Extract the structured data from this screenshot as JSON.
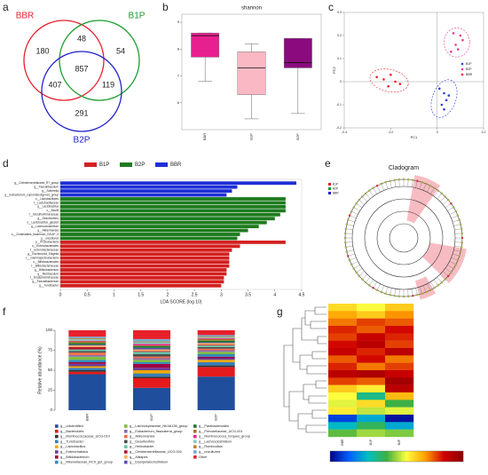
{
  "chart_data": [
    {
      "panel": "a",
      "type": "venn",
      "sets": [
        {
          "name": "BBR",
          "color": "#e8202a"
        },
        {
          "name": "B1P",
          "color": "#1a9c2e"
        },
        {
          "name": "B2P",
          "color": "#2020cc"
        }
      ],
      "regions": [
        {
          "sets": [
            0
          ],
          "value": 180
        },
        {
          "sets": [
            0,
            1
          ],
          "value": 48
        },
        {
          "sets": [
            1
          ],
          "value": 54
        },
        {
          "sets": [
            0,
            1,
            2
          ],
          "value": 857
        },
        {
          "sets": [
            0,
            2
          ],
          "value": 407
        },
        {
          "sets": [
            1,
            2
          ],
          "value": 119
        },
        {
          "sets": [
            2
          ],
          "value": 291
        }
      ]
    },
    {
      "panel": "b",
      "type": "box",
      "title": "shannon",
      "categories": [
        "BBR",
        "B1P",
        "B2P"
      ],
      "colors": [
        "#e8208f",
        "#f9b8c4",
        "#8b0b7f"
      ],
      "boxes": [
        {
          "min": 6.8,
          "q1": 7.7,
          "median": 8.5,
          "q3": 8.6,
          "max": 8.6
        },
        {
          "min": 5.4,
          "q1": 6.3,
          "median": 7.3,
          "q3": 7.9,
          "max": 8.2
        },
        {
          "min": 5.6,
          "q1": 7.3,
          "median": 7.5,
          "q3": 8.4,
          "max": 8.4
        }
      ],
      "ylim": [
        5,
        9.3
      ],
      "yticks": [
        6,
        7,
        8,
        9
      ]
    },
    {
      "panel": "c",
      "type": "scatter",
      "xlabel": "PC1",
      "ylabel": "PC2",
      "legend": "right",
      "xlim": [
        -0.4,
        0.2
      ],
      "ylim": [
        -0.2,
        0.3
      ],
      "xticks": [
        -0.4,
        -0.2,
        0,
        0.2
      ],
      "yticks": [
        -0.2,
        -0.1,
        0,
        0.1,
        0.2,
        0.3
      ],
      "series": [
        {
          "name": "B1P",
          "color": "#2a3fd0",
          "x": [
            0.01,
            0.03,
            0.04,
            0.02,
            0.05,
            0.03
          ],
          "y": [
            -0.03,
            -0.05,
            -0.08,
            -0.1,
            -0.06,
            -0.12
          ]
        },
        {
          "name": "B2P",
          "color": "#e83a8a",
          "x": [
            0.06,
            0.08,
            0.1,
            0.09,
            0.11,
            0.07
          ],
          "y": [
            0.13,
            0.16,
            0.2,
            0.14,
            0.18,
            0.21
          ]
        },
        {
          "name": "BBR",
          "color": "#e8202a",
          "x": [
            -0.26,
            -0.23,
            -0.2,
            -0.18,
            -0.16,
            -0.21
          ],
          "y": [
            0.02,
            0.01,
            0.03,
            0.0,
            -0.01,
            -0.02
          ]
        }
      ]
    },
    {
      "panel": "d",
      "type": "lda",
      "xlabel": "LDA SCORE (log 10)",
      "xlim": [
        0,
        4.5
      ],
      "xticks": [
        0.0,
        0.5,
        1.0,
        1.5,
        2.0,
        2.5,
        3.0,
        3.5,
        4.0,
        4.5
      ],
      "legend_order": [
        2,
        1,
        0
      ],
      "series": [
        {
          "name": "BBR",
          "color": "#1f2fd6",
          "categories": [
            "g__Christensenellaceae_R7_group",
            "g__Faecalibaculum",
            "g__Sutterella",
            "g__Eubacterium_coprostanoligenes_group"
          ],
          "values": [
            4.4,
            3.3,
            3.2,
            3.1
          ]
        },
        {
          "name": "B2P",
          "color": "#1e7b1e",
          "categories": [
            "o__Lactobacillales",
            "f__Lactobacillaceae",
            "g__Lactobacillus",
            "c__Bacilli",
            "f__Desulfovibrionaceae",
            "g__Desulfovibrio",
            "s__Lactobacillus_gasseri",
            "g__Lachnoclostridium",
            "g__Akkermansia",
            "s__Clostridiales_bacterium_CIEAF_2",
            "g__uncultured"
          ],
          "values": [
            4.2,
            4.2,
            4.2,
            4.2,
            4.1,
            4.0,
            3.85,
            3.7,
            3.5,
            3.35,
            3.3
          ]
        },
        {
          "name": "B1P",
          "color": "#d42020",
          "categories": [
            "p__Proteobacteria",
            "o__Enterobacteriales",
            "f__Enterobacteriaceae",
            "g__Escherichia_Shigella",
            "c__Gammaproteobacteria",
            "o__Bifidobacteriales",
            "f__Bifidobacteriaceae",
            "g__Bifidobacterium",
            "g__Muribaculum",
            "f__Erysipelotrichaceae",
            "g__Faecalibacterium",
            "g__Turicibacter"
          ],
          "values": [
            4.2,
            3.35,
            3.2,
            3.15,
            3.15,
            3.15,
            3.15,
            3.1,
            3.1,
            3.05,
            3.05,
            3.0
          ]
        }
      ]
    },
    {
      "panel": "e",
      "type": "cladogram",
      "title": "Cladogram",
      "legend": [
        "B1P",
        "B2P",
        "BBR"
      ]
    },
    {
      "panel": "f",
      "type": "stacked",
      "ylabel": "Relative abundance (%)",
      "categories": [
        "BBR",
        "B1P",
        "B2P"
      ],
      "ylim": [
        0,
        100
      ],
      "yticks": [
        0,
        25,
        50,
        75,
        100
      ],
      "series": [
        {
          "name": "g__unidentified",
          "color": "#1f4e9c",
          "values": [
            45,
            28,
            42
          ]
        },
        {
          "name": "g__Bacteroides",
          "color": "#e41a1c",
          "values": [
            3,
            12,
            12
          ]
        },
        {
          "name": "g__Ruminococcaceae_UCG-014",
          "color": "#333333",
          "values": [
            2,
            2,
            2
          ]
        },
        {
          "name": "g__Turicibacter",
          "color": "#377eb8",
          "values": [
            3,
            4,
            4
          ]
        },
        {
          "name": "g__Lactobacillus",
          "color": "#f2a900",
          "values": [
            2,
            4,
            3
          ]
        },
        {
          "name": "g__Enterorhabdus",
          "color": "#6a3d9a",
          "values": [
            3,
            3,
            2
          ]
        },
        {
          "name": "g__Bifidobacterium",
          "color": "#9e0142",
          "values": [
            2,
            5,
            2
          ]
        },
        {
          "name": "g__Rikenellaceae_RC9_gut_group",
          "color": "#2b8cbe",
          "values": [
            3,
            2,
            3
          ]
        },
        {
          "name": "g__Lachnospiraceae_NK4A136_group",
          "color": "#7fbc41",
          "values": [
            4,
            3,
            3
          ]
        },
        {
          "name": "g__Eubacterium_fissicatena_group",
          "color": "#8c6bb1",
          "values": [
            2,
            2,
            2
          ]
        },
        {
          "name": "g__Akkermansia",
          "color": "#f46d43",
          "values": [
            3,
            2,
            2
          ]
        },
        {
          "name": "g__Desulfovibrio",
          "color": "#4d4d4d",
          "values": [
            2,
            3,
            2
          ]
        },
        {
          "name": "g__Helicobacter",
          "color": "#66c2a5",
          "values": [
            2,
            3,
            2
          ]
        },
        {
          "name": "g__Christensenellaceae_UCG-002",
          "color": "#b2182b",
          "values": [
            3,
            1,
            1
          ]
        },
        {
          "name": "g__Alistipes",
          "color": "#fdae61",
          "values": [
            2,
            2,
            2
          ]
        },
        {
          "name": "g__Erysipelatoclostridium",
          "color": "#5e4fa2",
          "values": [
            1,
            2,
            1
          ]
        },
        {
          "name": "g__Parabacteroides",
          "color": "#1b7837",
          "values": [
            2,
            2,
            2
          ]
        },
        {
          "name": "g__Prevotellaceae_UCG-001",
          "color": "#a6761d",
          "values": [
            2,
            1,
            2
          ]
        },
        {
          "name": "g__Ruminococcus_torques_group",
          "color": "#e7298a",
          "values": [
            1,
            2,
            1
          ]
        },
        {
          "name": "g__Lachnoclostridium",
          "color": "#80cdc1",
          "values": [
            2,
            2,
            1
          ]
        },
        {
          "name": "g__Romboutsia",
          "color": "#bf812d",
          "values": [
            1,
            1,
            1
          ]
        },
        {
          "name": "g__uncultured",
          "color": "#74add1",
          "values": [
            2,
            3,
            2
          ]
        },
        {
          "name": "Other",
          "color": "#e8202a",
          "values": [
            8,
            11,
            6
          ]
        }
      ]
    },
    {
      "panel": "g",
      "type": "heatmap",
      "columns": [
        "BBR",
        "B1P",
        "B2P"
      ],
      "zlim": [
        -2,
        2
      ],
      "colorscale": [
        "#00008b",
        "#0060ff",
        "#00c0c0",
        "#40b040",
        "#ffff40",
        "#ffa000",
        "#d00000",
        "#8b0000"
      ],
      "values": [
        [
          0.5,
          0.3,
          0.6
        ],
        [
          0.8,
          0.6,
          0.9
        ],
        [
          1.0,
          1.2,
          1.1
        ],
        [
          1.3,
          1.1,
          1.4
        ],
        [
          1.2,
          1.5,
          1.3
        ],
        [
          1.4,
          1.6,
          1.2
        ],
        [
          1.5,
          1.3,
          1.6
        ],
        [
          1.1,
          1.4,
          1.0
        ],
        [
          1.3,
          1.0,
          1.2
        ],
        [
          1.6,
          1.7,
          1.5
        ],
        [
          1.2,
          1.1,
          1.8
        ],
        [
          0.6,
          0.4,
          1.6
        ],
        [
          0.3,
          -0.6,
          0.7
        ],
        [
          0.2,
          0.5,
          -0.3
        ],
        [
          0.4,
          0.1,
          0.2
        ],
        [
          -1.6,
          -1.0,
          -1.9
        ],
        [
          -0.9,
          -0.4,
          -1.0
        ],
        [
          -0.2,
          0.0,
          -0.1
        ]
      ]
    }
  ]
}
